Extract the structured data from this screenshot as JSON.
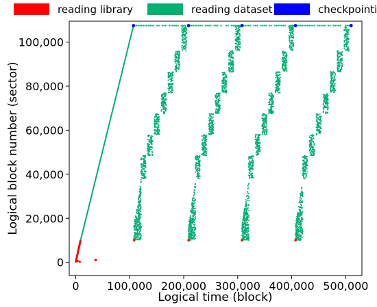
{
  "chart_data": {
    "type": "scatter",
    "title": "",
    "xlabel": "Logical time (block)",
    "ylabel": "Logical block number (sector)",
    "xlim": [
      -12000,
      530000
    ],
    "ylim": [
      -6000,
      109500
    ],
    "xticks": [
      0,
      100000,
      200000,
      300000,
      400000,
      500000
    ],
    "xtick_labels": [
      "0",
      "100,000",
      "200,000",
      "300,000",
      "400,000",
      "500,000"
    ],
    "yticks": [
      0,
      20000,
      40000,
      60000,
      80000,
      100000
    ],
    "ytick_labels": [
      "0",
      "20,000",
      "40,000",
      "60,000",
      "80,000",
      "100,000"
    ],
    "grid": false,
    "legend_position": "top, outside plot",
    "series": [
      {
        "name": "reading library",
        "color": "#ff0000",
        "segments": [
          {
            "x": [
              0,
              9000
            ],
            "y": [
              0,
              10000
            ]
          },
          {
            "x": [
              2000,
              4500
            ],
            "y": [
              200,
              900
            ]
          },
          {
            "x": [
              6000,
              9000
            ],
            "y": [
              0,
              500
            ]
          }
        ],
        "points": [
          {
            "x": 37000,
            "y": 1000
          },
          {
            "x": 108000,
            "y": 10000
          },
          {
            "x": 209000,
            "y": 10000
          },
          {
            "x": 308000,
            "y": 10000
          },
          {
            "x": 407000,
            "y": 10000
          }
        ]
      },
      {
        "name": "reading dataset",
        "color": "#00b070",
        "write_line": {
          "x": [
            9000,
            107000
          ],
          "y": [
            10000,
            107500
          ]
        },
        "top_dashes": {
          "x": [
            108000,
            510000
          ],
          "y": 107500
        },
        "passes": [
          {
            "x_start": 108000,
            "x_end": 209000
          },
          {
            "x_start": 209000,
            "x_end": 308000
          },
          {
            "x_start": 308000,
            "x_end": 407000
          },
          {
            "x_start": 407000,
            "x_end": 510000
          }
        ],
        "pass_bands": [
          {
            "y_lo": 10000,
            "y_hi": 38000
          },
          {
            "y_lo": 38000,
            "y_hi": 48500
          },
          {
            "y_lo": 48500,
            "y_hi": 58000
          },
          {
            "y_lo": 58000,
            "y_hi": 67500
          },
          {
            "y_lo": 67500,
            "y_hi": 77000
          },
          {
            "y_lo": 77000,
            "y_hi": 86500
          },
          {
            "y_lo": 86500,
            "y_hi": 96000
          },
          {
            "y_lo": 96000,
            "y_hi": 107500
          }
        ]
      },
      {
        "name": "checkpointing",
        "color": "#0000ff",
        "points": [
          {
            "x": 107000,
            "y": 107500
          },
          {
            "x": 209000,
            "y": 107500
          },
          {
            "x": 308000,
            "y": 107500
          },
          {
            "x": 407000,
            "y": 107500
          },
          {
            "x": 510000,
            "y": 107500
          }
        ]
      }
    ]
  }
}
